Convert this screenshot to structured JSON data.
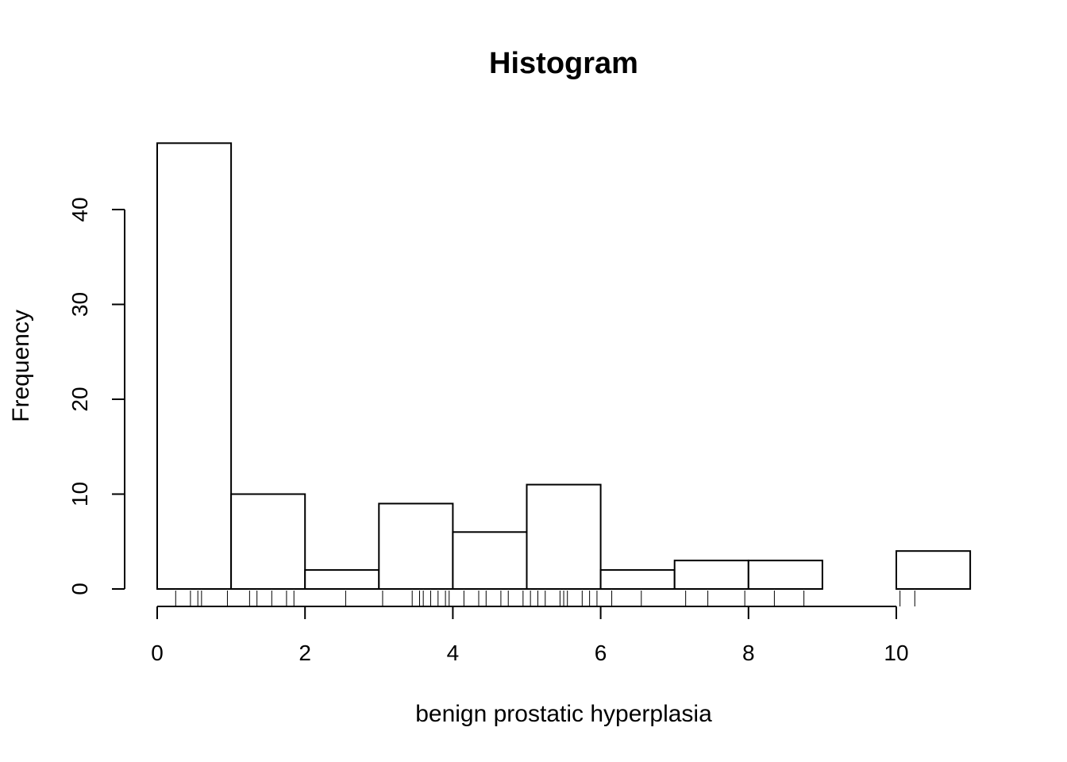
{
  "chart_data": {
    "type": "histogram",
    "title": "Histogram",
    "xlabel": "benign prostatic hyperplasia",
    "ylabel": "Frequency",
    "bins": [
      {
        "start": 0,
        "end": 1,
        "count": 47
      },
      {
        "start": 1,
        "end": 2,
        "count": 10
      },
      {
        "start": 2,
        "end": 3,
        "count": 2
      },
      {
        "start": 3,
        "end": 4,
        "count": 9
      },
      {
        "start": 4,
        "end": 5,
        "count": 6
      },
      {
        "start": 5,
        "end": 6,
        "count": 11
      },
      {
        "start": 6,
        "end": 7,
        "count": 2
      },
      {
        "start": 7,
        "end": 8,
        "count": 3
      },
      {
        "start": 8,
        "end": 9,
        "count": 3
      },
      {
        "start": 9,
        "end": 10,
        "count": 0
      },
      {
        "start": 10,
        "end": 11,
        "count": 4
      }
    ],
    "x_ticks": [
      0,
      2,
      4,
      6,
      8,
      10
    ],
    "y_ticks": [
      0,
      10,
      20,
      30,
      40
    ],
    "xlim": [
      0,
      11
    ],
    "ylim": [
      0,
      47
    ],
    "rug": [
      0.25,
      0.45,
      0.55,
      0.6,
      0.95,
      1.25,
      1.35,
      1.55,
      1.75,
      1.85,
      2.55,
      3.05,
      3.45,
      3.55,
      3.6,
      3.7,
      3.8,
      3.9,
      3.95,
      4.15,
      4.35,
      4.45,
      4.65,
      4.75,
      4.95,
      5.05,
      5.15,
      5.25,
      5.45,
      5.5,
      5.55,
      5.75,
      5.85,
      5.95,
      6.15,
      6.55,
      7.15,
      7.45,
      7.95,
      8.35,
      8.75,
      10.05,
      10.25
    ],
    "grid": false
  }
}
